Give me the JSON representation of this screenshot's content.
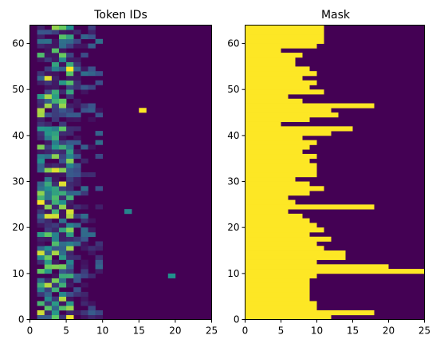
{
  "chart_data": [
    {
      "type": "heatmap",
      "title": "Token IDs",
      "xlim": [
        0,
        25
      ],
      "ylim": [
        0,
        64
      ],
      "xticks": [
        "0",
        "5",
        "10",
        "15",
        "20",
        "25"
      ],
      "yticks": [
        "0",
        "10",
        "20",
        "30",
        "40",
        "50",
        "60"
      ],
      "colormap": "viridis",
      "background_value": 0,
      "row_lengths": [
        12,
        18,
        10,
        10,
        9,
        9,
        9,
        9,
        9,
        10,
        25,
        20,
        10,
        14,
        14,
        11,
        10,
        12,
        9,
        11,
        10,
        9,
        8,
        6,
        18,
        7,
        6,
        9,
        11,
        9,
        7,
        10,
        10,
        10,
        9,
        10,
        8,
        9,
        10,
        8,
        12,
        15,
        5,
        9,
        13,
        12,
        18,
        8,
        6,
        11,
        9,
        10,
        8,
        10,
        9,
        7,
        7,
        8,
        5,
        10,
        11,
        11,
        11,
        11
      ],
      "note_cells": [
        {
          "x": 15,
          "y": 45,
          "v": 1.0
        },
        {
          "x": 19,
          "y": 9,
          "v": 0.5
        },
        {
          "x": 13,
          "y": 23,
          "v": 0.45
        }
      ]
    },
    {
      "type": "heatmap",
      "title": "Mask",
      "xlim": [
        0,
        25
      ],
      "ylim": [
        0,
        64
      ],
      "xticks": [
        "0",
        "5",
        "10",
        "15",
        "20",
        "25"
      ],
      "yticks": [
        "0",
        "10",
        "20",
        "30",
        "40",
        "50",
        "60"
      ],
      "colors": {
        "on": "#fde725",
        "off": "#440154"
      }
    }
  ]
}
